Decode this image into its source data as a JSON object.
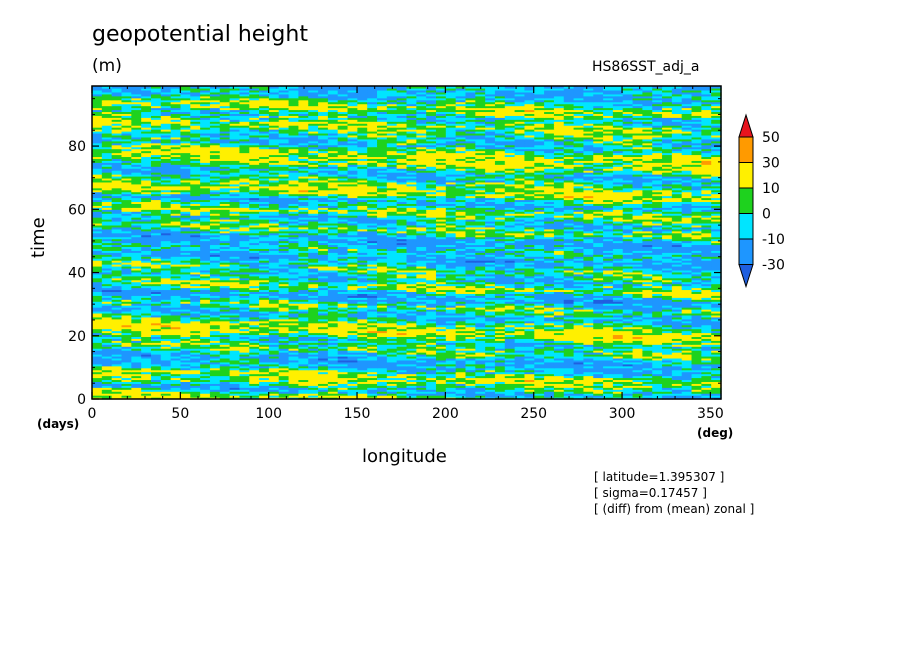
{
  "header": {
    "title": "geopotential height",
    "units": "(m)",
    "run_label": "HS86SST_adj_a"
  },
  "annotations": [
    "[ latitude=1.395307 ]",
    "[ sigma=0.17457 ]",
    "[ (diff) from (mean) zonal ]"
  ],
  "chart_data": {
    "type": "heatmap",
    "title": "geopotential height",
    "subtitle": "(m)",
    "xlabel": "longitude",
    "ylabel": "time",
    "x_unit": "(deg)",
    "y_unit": "(days)",
    "xlim": [
      0,
      356
    ],
    "ylim": [
      0,
      99
    ],
    "x_ticks": [
      0,
      50,
      100,
      150,
      200,
      250,
      300,
      350
    ],
    "y_ticks": [
      0,
      20,
      40,
      60,
      80
    ],
    "colorbar": {
      "levels": [
        -30,
        -10,
        0,
        10,
        30,
        50
      ],
      "labels": [
        "-30",
        "-10",
        "0",
        "10",
        "30",
        "50"
      ],
      "colors": [
        "#1f5fe0",
        "#1e96ff",
        "#00e5ff",
        "#1ed21e",
        "#fff000",
        "#ff9a00",
        "#e8141e"
      ],
      "extend": "both"
    },
    "time_bands": [
      {
        "time": 2,
        "value": 12
      },
      {
        "time": 4,
        "value": -14
      },
      {
        "time": 6,
        "value": 3
      },
      {
        "time": 9,
        "value": 14
      },
      {
        "time": 11,
        "value": -6
      },
      {
        "time": 14,
        "value": -16
      },
      {
        "time": 17,
        "value": 5
      },
      {
        "time": 20,
        "value": -5
      },
      {
        "time": 23,
        "value": 18
      },
      {
        "time": 25,
        "value": 8
      },
      {
        "time": 28,
        "value": -12
      },
      {
        "time": 31,
        "value": 6
      },
      {
        "time": 34,
        "value": -20
      },
      {
        "time": 37,
        "value": 10
      },
      {
        "time": 40,
        "value": -8
      },
      {
        "time": 43,
        "value": 4
      },
      {
        "time": 46,
        "value": -16
      },
      {
        "time": 49,
        "value": -4
      },
      {
        "time": 52,
        "value": -18
      },
      {
        "time": 55,
        "value": 8
      },
      {
        "time": 58,
        "value": -10
      },
      {
        "time": 61,
        "value": 12
      },
      {
        "time": 64,
        "value": -14
      },
      {
        "time": 67,
        "value": 16
      },
      {
        "time": 70,
        "value": 6
      },
      {
        "time": 73,
        "value": -12
      },
      {
        "time": 76,
        "value": 9
      },
      {
        "time": 79,
        "value": 15
      },
      {
        "time": 82,
        "value": -8
      },
      {
        "time": 85,
        "value": -3
      },
      {
        "time": 88,
        "value": 11
      },
      {
        "time": 91,
        "value": -6
      },
      {
        "time": 94,
        "value": 14
      },
      {
        "time": 97,
        "value": -9
      }
    ]
  }
}
